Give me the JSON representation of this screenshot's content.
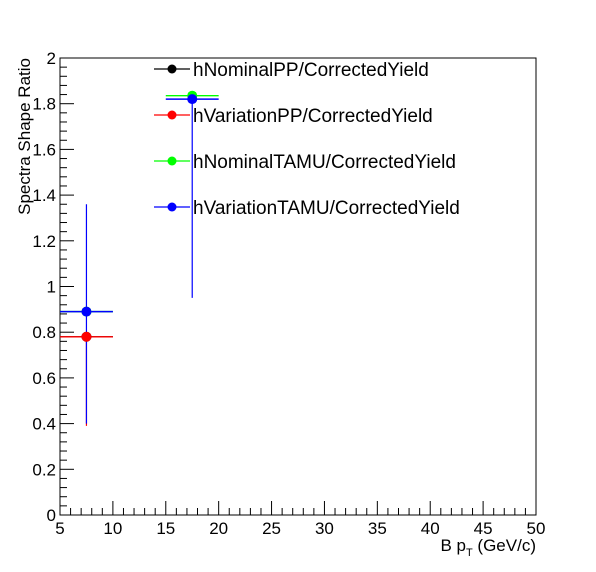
{
  "chart_data": {
    "type": "scatter",
    "xlabel_main": "B p",
    "xlabel_sub": "T",
    "xlabel_unit": " (GeV/c)",
    "ylabel": "Spectra Shape Ratio",
    "xlim": [
      5,
      50
    ],
    "ylim": [
      0,
      2
    ],
    "x_ticks": [
      5,
      10,
      15,
      20,
      25,
      30,
      35,
      40,
      45,
      50
    ],
    "x_tick_labels": [
      "5",
      "10",
      "15",
      "20",
      "25",
      "30",
      "35",
      "40",
      "45",
      "50"
    ],
    "y_ticks": [
      0,
      0.2,
      0.4,
      0.6,
      0.8,
      1,
      1.2,
      1.4,
      1.6,
      1.8,
      2
    ],
    "y_tick_labels": [
      "0",
      "0.2",
      "0.4",
      "0.6",
      "0.8",
      "1",
      "1.2",
      "1.4",
      "1.6",
      "1.8",
      "2"
    ],
    "grid": false,
    "legend_position": "top",
    "series": [
      {
        "name": "hNominalPP/CorrectedYield",
        "color": "#000000",
        "points": [
          {
            "x": 7.5,
            "y": 0.78,
            "xlow": 5,
            "xhigh": 10,
            "ylow": 0.78,
            "yhigh": 0.78
          }
        ]
      },
      {
        "name": "hVariationPP/CorrectedYield",
        "color": "#ff0000",
        "points": [
          {
            "x": 7.5,
            "y": 0.78,
            "xlow": 5,
            "xhigh": 10,
            "ylow": 0.39,
            "yhigh": 0.78
          }
        ]
      },
      {
        "name": "hNominalTAMU/CorrectedYield",
        "color": "#00ff00",
        "points": [
          {
            "x": 7.5,
            "y": 0.89,
            "xlow": 5,
            "xhigh": 10,
            "ylow": 0.89,
            "yhigh": 0.89
          },
          {
            "x": 17.5,
            "y": 1.835,
            "xlow": 15,
            "xhigh": 20,
            "ylow": 1.835,
            "yhigh": 1.835
          }
        ]
      },
      {
        "name": "hVariationTAMU/CorrectedYield",
        "color": "#0000ff",
        "points": [
          {
            "x": 7.5,
            "y": 0.89,
            "xlow": 5,
            "xhigh": 10,
            "ylow": 0.4,
            "yhigh": 1.36
          },
          {
            "x": 17.5,
            "y": 1.82,
            "xlow": 15,
            "xhigh": 20,
            "ylow": 0.95,
            "yhigh": 1.82
          }
        ]
      }
    ]
  }
}
